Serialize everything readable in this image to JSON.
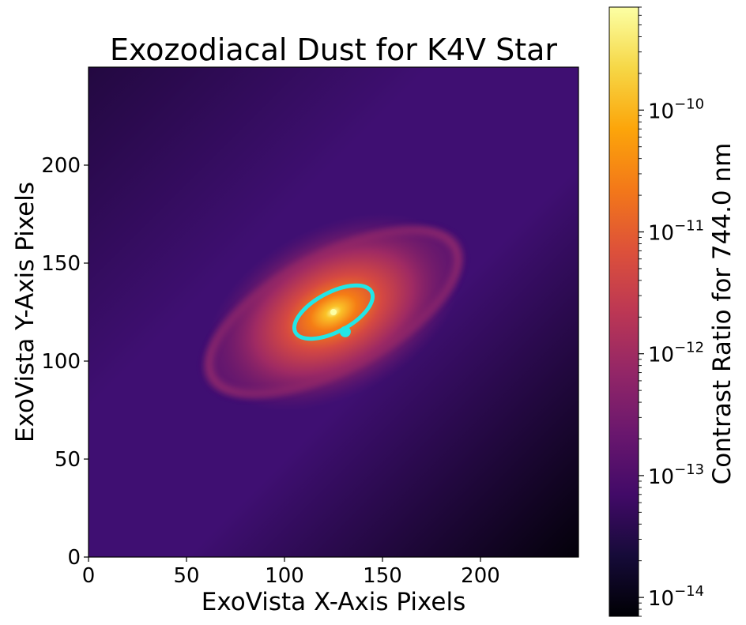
{
  "chart_data": {
    "type": "heatmap",
    "title": "Exozodiacal Dust for K4V Star",
    "xlabel": "ExoVista X-Axis Pixels",
    "ylabel": "ExoVista Y-Axis Pixels",
    "xlim": [
      0,
      250
    ],
    "ylim": [
      0,
      250
    ],
    "xticks": [
      "0",
      "50",
      "100",
      "150",
      "200"
    ],
    "yticks": [
      "0",
      "50",
      "100",
      "150",
      "200"
    ],
    "colormap": "inferno",
    "colorbar": {
      "label": "Contrast Ratio for 744.0 nm",
      "scale": "log",
      "range": [
        7e-15,
        7e-10
      ],
      "tick_exponents": [
        -14,
        -13,
        -12,
        -11,
        -10
      ],
      "tick_base": "10"
    },
    "star": {
      "x": 125,
      "y": 125
    },
    "planet_orbit": {
      "center": [
        125,
        125
      ],
      "semi_major": 22,
      "semi_minor": 10,
      "angle_deg": 28,
      "color": "#22e6e6"
    },
    "planet_marker": {
      "x": 131,
      "y": 115,
      "color": "#22e6e6"
    },
    "dust_ring": {
      "center": [
        125,
        125
      ],
      "semi_major": 70,
      "semi_minor": 29,
      "angle_deg": 28
    }
  }
}
